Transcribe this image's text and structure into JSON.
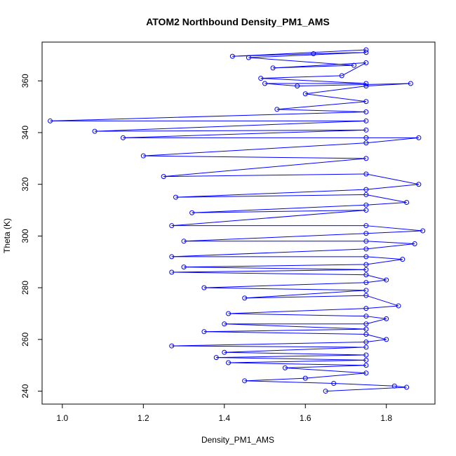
{
  "chart_data": {
    "type": "line",
    "title": "ATOM2 Northbound Density_PM1_AMS",
    "xlabel": "Density_PM1_AMS",
    "ylabel": "Theta (K)",
    "xlim": [
      0.95,
      1.92
    ],
    "ylim": [
      235,
      375
    ],
    "x_ticks": [
      1.0,
      1.2,
      1.4,
      1.6,
      1.8
    ],
    "x_tick_labels": [
      "1.0",
      "1.2",
      "1.4",
      "1.6",
      "1.8"
    ],
    "y_ticks": [
      240,
      260,
      280,
      300,
      320,
      340,
      360
    ],
    "y_tick_labels": [
      "240",
      "260",
      "280",
      "300",
      "320",
      "340",
      "360"
    ],
    "grid": false,
    "legend": "none",
    "series_style": {
      "color": "#0000ff",
      "marker": "open-circle",
      "line": "solid"
    },
    "series": [
      {
        "points": [
          [
            1.75,
            372
          ],
          [
            1.42,
            369.5
          ],
          [
            1.62,
            370.5
          ],
          [
            1.75,
            371
          ],
          [
            1.46,
            369
          ],
          [
            1.72,
            366
          ],
          [
            1.52,
            365
          ],
          [
            1.75,
            367
          ],
          [
            1.69,
            362
          ],
          [
            1.49,
            361
          ],
          [
            1.75,
            359
          ],
          [
            1.5,
            359
          ],
          [
            1.58,
            358
          ],
          [
            1.86,
            359
          ],
          [
            1.75,
            358
          ],
          [
            1.6,
            355
          ],
          [
            1.75,
            352
          ],
          [
            1.53,
            349
          ],
          [
            1.75,
            348
          ],
          [
            0.97,
            344.5
          ],
          [
            1.75,
            344.5
          ],
          [
            1.08,
            340.5
          ],
          [
            1.75,
            341
          ],
          [
            1.15,
            338
          ],
          [
            1.75,
            338
          ],
          [
            1.88,
            338
          ],
          [
            1.75,
            336
          ],
          [
            1.2,
            331
          ],
          [
            1.75,
            330
          ],
          [
            1.25,
            323
          ],
          [
            1.75,
            324
          ],
          [
            1.88,
            320
          ],
          [
            1.75,
            318
          ],
          [
            1.28,
            315
          ],
          [
            1.75,
            316
          ],
          [
            1.85,
            313
          ],
          [
            1.75,
            312
          ],
          [
            1.32,
            309
          ],
          [
            1.75,
            310
          ],
          [
            1.27,
            304
          ],
          [
            1.75,
            304
          ],
          [
            1.89,
            302
          ],
          [
            1.75,
            301
          ],
          [
            1.3,
            298
          ],
          [
            1.75,
            298
          ],
          [
            1.87,
            297
          ],
          [
            1.75,
            295
          ],
          [
            1.27,
            292
          ],
          [
            1.75,
            292
          ],
          [
            1.84,
            291
          ],
          [
            1.75,
            289
          ],
          [
            1.3,
            288
          ],
          [
            1.75,
            287
          ],
          [
            1.27,
            286
          ],
          [
            1.75,
            285
          ],
          [
            1.8,
            283
          ],
          [
            1.75,
            282
          ],
          [
            1.35,
            280
          ],
          [
            1.75,
            279
          ],
          [
            1.45,
            276
          ],
          [
            1.75,
            277
          ],
          [
            1.83,
            273
          ],
          [
            1.75,
            272
          ],
          [
            1.41,
            270
          ],
          [
            1.75,
            269
          ],
          [
            1.8,
            268
          ],
          [
            1.75,
            266
          ],
          [
            1.4,
            266
          ],
          [
            1.75,
            264
          ],
          [
            1.35,
            263
          ],
          [
            1.75,
            262
          ],
          [
            1.8,
            260
          ],
          [
            1.75,
            259
          ],
          [
            1.27,
            257.5
          ],
          [
            1.75,
            257
          ],
          [
            1.4,
            255
          ],
          [
            1.75,
            254
          ],
          [
            1.38,
            253
          ],
          [
            1.75,
            252
          ],
          [
            1.41,
            251
          ],
          [
            1.75,
            250
          ],
          [
            1.55,
            249
          ],
          [
            1.75,
            247
          ],
          [
            1.6,
            245
          ],
          [
            1.45,
            244
          ],
          [
            1.67,
            243
          ],
          [
            1.82,
            242
          ],
          [
            1.85,
            241.5
          ],
          [
            1.65,
            240
          ]
        ]
      }
    ]
  }
}
